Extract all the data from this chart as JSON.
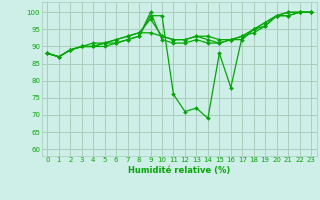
{
  "xlabel": "Humidité relative (%)",
  "xlim": [
    -0.5,
    23.5
  ],
  "ylim": [
    58,
    103
  ],
  "yticks": [
    60,
    65,
    70,
    75,
    80,
    85,
    90,
    95,
    100
  ],
  "xticks": [
    0,
    1,
    2,
    3,
    4,
    5,
    6,
    7,
    8,
    9,
    10,
    11,
    12,
    13,
    14,
    15,
    16,
    17,
    18,
    19,
    20,
    21,
    22,
    23
  ],
  "background_color": "#ceeee8",
  "grid_color": "#aaccbb",
  "line_color": "#00aa00",
  "series": [
    [
      88,
      87,
      89,
      90,
      90,
      90,
      91,
      92,
      93,
      99,
      99,
      76,
      71,
      72,
      69,
      88,
      78,
      93,
      94,
      96,
      99,
      99,
      100,
      100
    ],
    [
      88,
      87,
      89,
      90,
      90,
      91,
      91,
      92,
      93,
      100,
      92,
      91,
      91,
      92,
      91,
      91,
      92,
      93,
      95,
      97,
      99,
      99,
      100,
      100
    ],
    [
      88,
      87,
      89,
      90,
      90,
      91,
      92,
      93,
      94,
      98,
      93,
      92,
      92,
      93,
      92,
      91,
      92,
      92,
      95,
      97,
      99,
      100,
      100,
      100
    ],
    [
      88,
      87,
      89,
      90,
      91,
      91,
      92,
      93,
      94,
      94,
      93,
      92,
      92,
      93,
      93,
      92,
      92,
      93,
      95,
      96,
      99,
      100,
      100,
      100
    ]
  ]
}
